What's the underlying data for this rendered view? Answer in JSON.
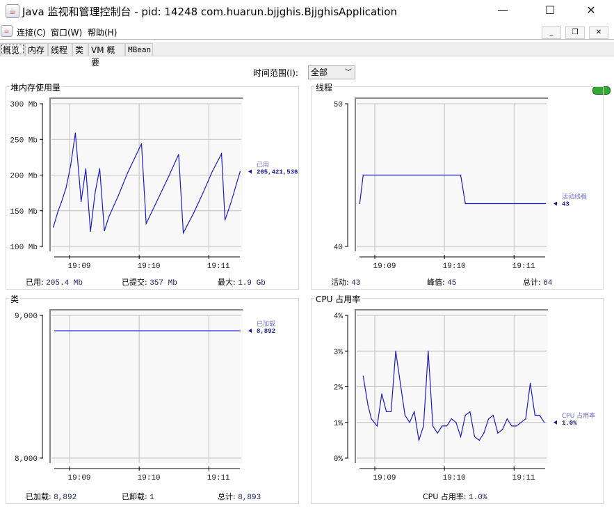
{
  "window": {
    "title": "Java 监视和管理控制台 - pid: 14248 com.huarun.bjjghis.BjjghisApplication"
  },
  "menu": [
    "连接(C)",
    "窗口(W)",
    "帮助(H)"
  ],
  "tabs": [
    {
      "label": "概览",
      "active": true
    },
    {
      "label": "内存"
    },
    {
      "label": "线程"
    },
    {
      "label": "类"
    },
    {
      "label": "VM 概要"
    },
    {
      "label": "MBean"
    }
  ],
  "time_range": {
    "label": "时间范围(I):",
    "value": "全部"
  },
  "colors": {
    "line": "#1a1ac8",
    "legend_label": "#7070d0",
    "legend_value": "#1a1a9a",
    "plot_bg": "#f8f8f8",
    "grid": "#c0c0c0"
  },
  "chart_data": [
    {
      "type": "line",
      "title": "堆内存使用量",
      "yticks": [
        "300 Mb",
        "250 Mb",
        "200 Mb",
        "150 Mb",
        "100 Mb"
      ],
      "ylim": [
        100,
        300
      ],
      "unit": "Mb",
      "xticks": [
        "19:09",
        "19:10",
        "19:11"
      ],
      "xlim": [
        "19:08:45",
        "19:11:28"
      ],
      "series": [
        {
          "name": "已用",
          "latest": "205,421,536",
          "x": [
            "19:08:46",
            "19:08:50",
            "19:08:53",
            "19:08:57",
            "19:09:01",
            "19:09:05",
            "19:09:10",
            "19:09:14",
            "19:09:18",
            "19:09:22",
            "19:09:26",
            "19:09:30",
            "19:09:34",
            "19:09:42",
            "19:09:50",
            "19:10:02",
            "19:10:06",
            "19:10:14",
            "19:10:26",
            "19:10:34",
            "19:10:38",
            "19:10:47",
            "19:10:55",
            "19:11:03",
            "19:11:11",
            "19:11:14",
            "19:11:19",
            "19:11:27"
          ],
          "y": [
            127,
            149,
            162,
            182,
            214,
            259,
            163,
            209,
            121,
            175,
            209,
            122,
            142,
            171,
            203,
            244,
            132,
            159,
            200,
            229,
            119,
            147,
            175,
            205,
            230,
            137,
            161,
            205
          ]
        }
      ],
      "footer": [
        {
          "label": "已用:",
          "value": "205.4  Mb"
        },
        {
          "label": "已提交:",
          "value": "357  Mb"
        },
        {
          "label": "最大:",
          "value": "1.9  Gb"
        }
      ]
    },
    {
      "type": "line",
      "title": "线程",
      "yticks": [
        "50",
        "40"
      ],
      "ylim": [
        40,
        50
      ],
      "xticks": [
        "19:09",
        "19:10",
        "19:11"
      ],
      "xlim": [
        "19:08:45",
        "19:11:28"
      ],
      "series": [
        {
          "name": "活动线程",
          "latest": "43",
          "x": [
            "19:08:47",
            "19:08:50",
            "19:10:14",
            "19:10:18",
            "19:11:27"
          ],
          "y": [
            43,
            45,
            45,
            43,
            43
          ]
        }
      ],
      "footer": [
        {
          "label": "活动:",
          "value": "43"
        },
        {
          "label": "峰值:",
          "value": "45"
        },
        {
          "label": "总计:",
          "value": "64"
        }
      ]
    },
    {
      "type": "line",
      "title": "类",
      "yticks": [
        "9,000",
        "8,000"
      ],
      "ylim": [
        8000,
        9000
      ],
      "xticks": [
        "19:09",
        "19:10",
        "19:11"
      ],
      "xlim": [
        "19:08:45",
        "19:11:28"
      ],
      "series": [
        {
          "name": "已加载",
          "latest": "8,892",
          "x": [
            "19:08:47",
            "19:11:27"
          ],
          "y": [
            8892,
            8892
          ]
        }
      ],
      "footer": [
        {
          "label": "已加载:",
          "value": "8,892"
        },
        {
          "label": "已卸载:",
          "value": "1"
        },
        {
          "label": "总计:",
          "value": "8,893"
        }
      ]
    },
    {
      "type": "line",
      "title": "CPU 占用率",
      "yticks": [
        "4%",
        "3%",
        "2%",
        "1%",
        "0%"
      ],
      "ylim": [
        0,
        4
      ],
      "unit": "%",
      "xticks": [
        "19:09",
        "19:10",
        "19:11"
      ],
      "xlim": [
        "19:08:45",
        "19:11:28"
      ],
      "series": [
        {
          "name": "CPU 占用率",
          "latest": "1.0%",
          "x": [
            "19:08:50",
            "19:08:54",
            "19:08:57",
            "19:09:02",
            "19:09:06",
            "19:09:10",
            "19:09:14",
            "19:09:18",
            "19:09:22",
            "19:09:26",
            "19:09:30",
            "19:09:34",
            "19:09:38",
            "19:09:42",
            "19:09:46",
            "19:09:50",
            "19:09:54",
            "19:09:58",
            "19:10:02",
            "19:10:06",
            "19:10:10",
            "19:10:14",
            "19:10:18",
            "19:10:22",
            "19:10:26",
            "19:10:30",
            "19:10:34",
            "19:10:38",
            "19:10:42",
            "19:10:46",
            "19:10:50",
            "19:10:54",
            "19:10:58",
            "19:11:02",
            "19:11:06",
            "19:11:10",
            "19:11:14",
            "19:11:18",
            "19:11:22",
            "19:11:26"
          ],
          "y": [
            2.3,
            1.5,
            1.1,
            0.9,
            1.8,
            1.3,
            1.3,
            3.0,
            2.1,
            1.2,
            1.0,
            1.3,
            0.5,
            0.9,
            3.0,
            0.9,
            0.7,
            0.9,
            0.9,
            1.1,
            1.0,
            0.6,
            1.2,
            1.3,
            0.6,
            0.5,
            0.7,
            1.1,
            1.2,
            0.7,
            0.8,
            1.1,
            0.9,
            0.9,
            1.0,
            1.1,
            2.1,
            1.2,
            1.2,
            1.0
          ]
        }
      ],
      "footer": [
        {
          "label": "CPU 占用率:",
          "value": "1.0%"
        }
      ]
    }
  ]
}
